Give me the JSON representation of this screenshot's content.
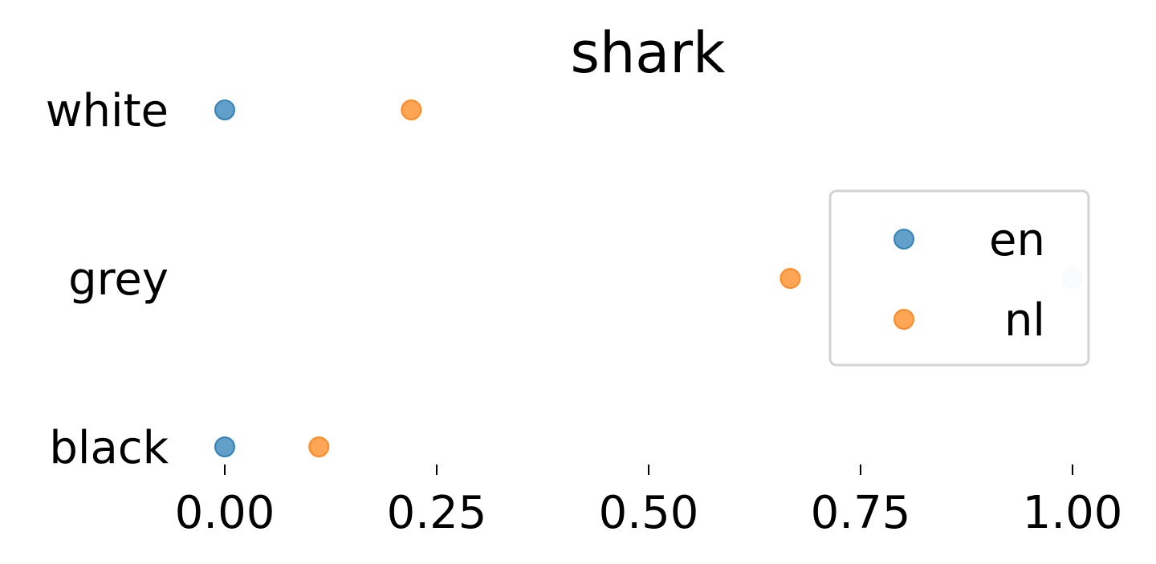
{
  "chart_data": {
    "type": "scatter",
    "title": "shark",
    "xlabel": "",
    "ylabel": "",
    "categories": [
      "white",
      "grey",
      "black"
    ],
    "xlim": [
      0,
      1
    ],
    "x_ticks": [
      "0.00",
      "0.25",
      "0.50",
      "0.75",
      "1.00"
    ],
    "x_tick_values": [
      0,
      0.25,
      0.5,
      0.75,
      1.0
    ],
    "grid": false,
    "legend_position": "right",
    "series": [
      {
        "name": "en",
        "color": "#1f77b4",
        "points": [
          {
            "category": "white",
            "x": 0.0
          },
          {
            "category": "grey",
            "x": 1.0
          },
          {
            "category": "black",
            "x": 0.0
          }
        ]
      },
      {
        "name": "nl",
        "color": "#ff7f0e",
        "points": [
          {
            "category": "white",
            "x": 0.22
          },
          {
            "category": "grey",
            "x": 0.667
          },
          {
            "category": "black",
            "x": 0.111
          }
        ]
      }
    ]
  }
}
